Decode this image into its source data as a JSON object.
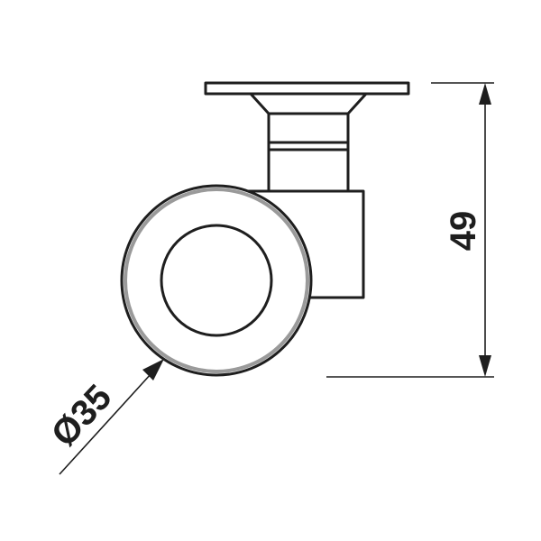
{
  "dimensions": {
    "diameter_label": "Ø35",
    "height_label": "49"
  },
  "colors": {
    "line": "#1e1e1e",
    "wheel_ring": "#9a9a9a",
    "background": "#ffffff"
  }
}
